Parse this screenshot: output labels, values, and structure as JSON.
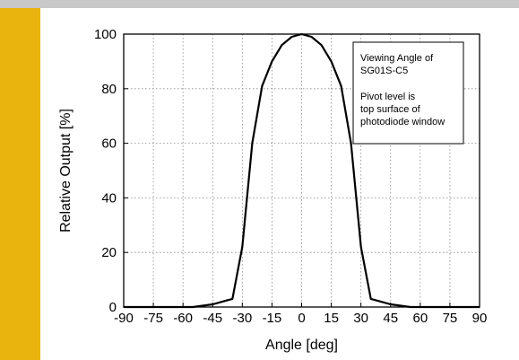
{
  "colors": {
    "accent_bar": "#e9b40d",
    "top_bar": "#c8c8c8",
    "grid": "#888888",
    "line": "#000000"
  },
  "chart_data": {
    "type": "line",
    "xlabel": "Angle [deg]",
    "ylabel": "Relative Output [%]",
    "xlim": [
      -90,
      90
    ],
    "ylim": [
      0,
      100
    ],
    "xticks": [
      -90,
      -75,
      -60,
      -45,
      -30,
      -15,
      0,
      15,
      30,
      45,
      60,
      75,
      90
    ],
    "yticks": [
      0,
      20,
      40,
      60,
      80,
      100
    ],
    "grid": true,
    "annotation_lines": [
      "Viewing Angle of",
      "SG01S-C5",
      "",
      "Pivot level is",
      "top surface of",
      "photodiode window"
    ],
    "series": [
      {
        "x": [
          -90,
          -75,
          -60,
          -55,
          -50,
          -45,
          -40,
          -35,
          -30,
          -25,
          -20,
          -15,
          -10,
          -5,
          0,
          5,
          10,
          15,
          20,
          25,
          30,
          35,
          40,
          45,
          50,
          55,
          60,
          75,
          90
        ],
        "y": [
          0,
          0,
          0,
          0,
          0.5,
          1,
          2,
          3,
          22,
          60,
          81,
          90,
          96,
          99,
          100,
          99,
          96,
          90,
          81,
          60,
          22,
          3,
          2,
          1,
          0.5,
          0,
          0,
          0,
          0
        ]
      }
    ]
  }
}
